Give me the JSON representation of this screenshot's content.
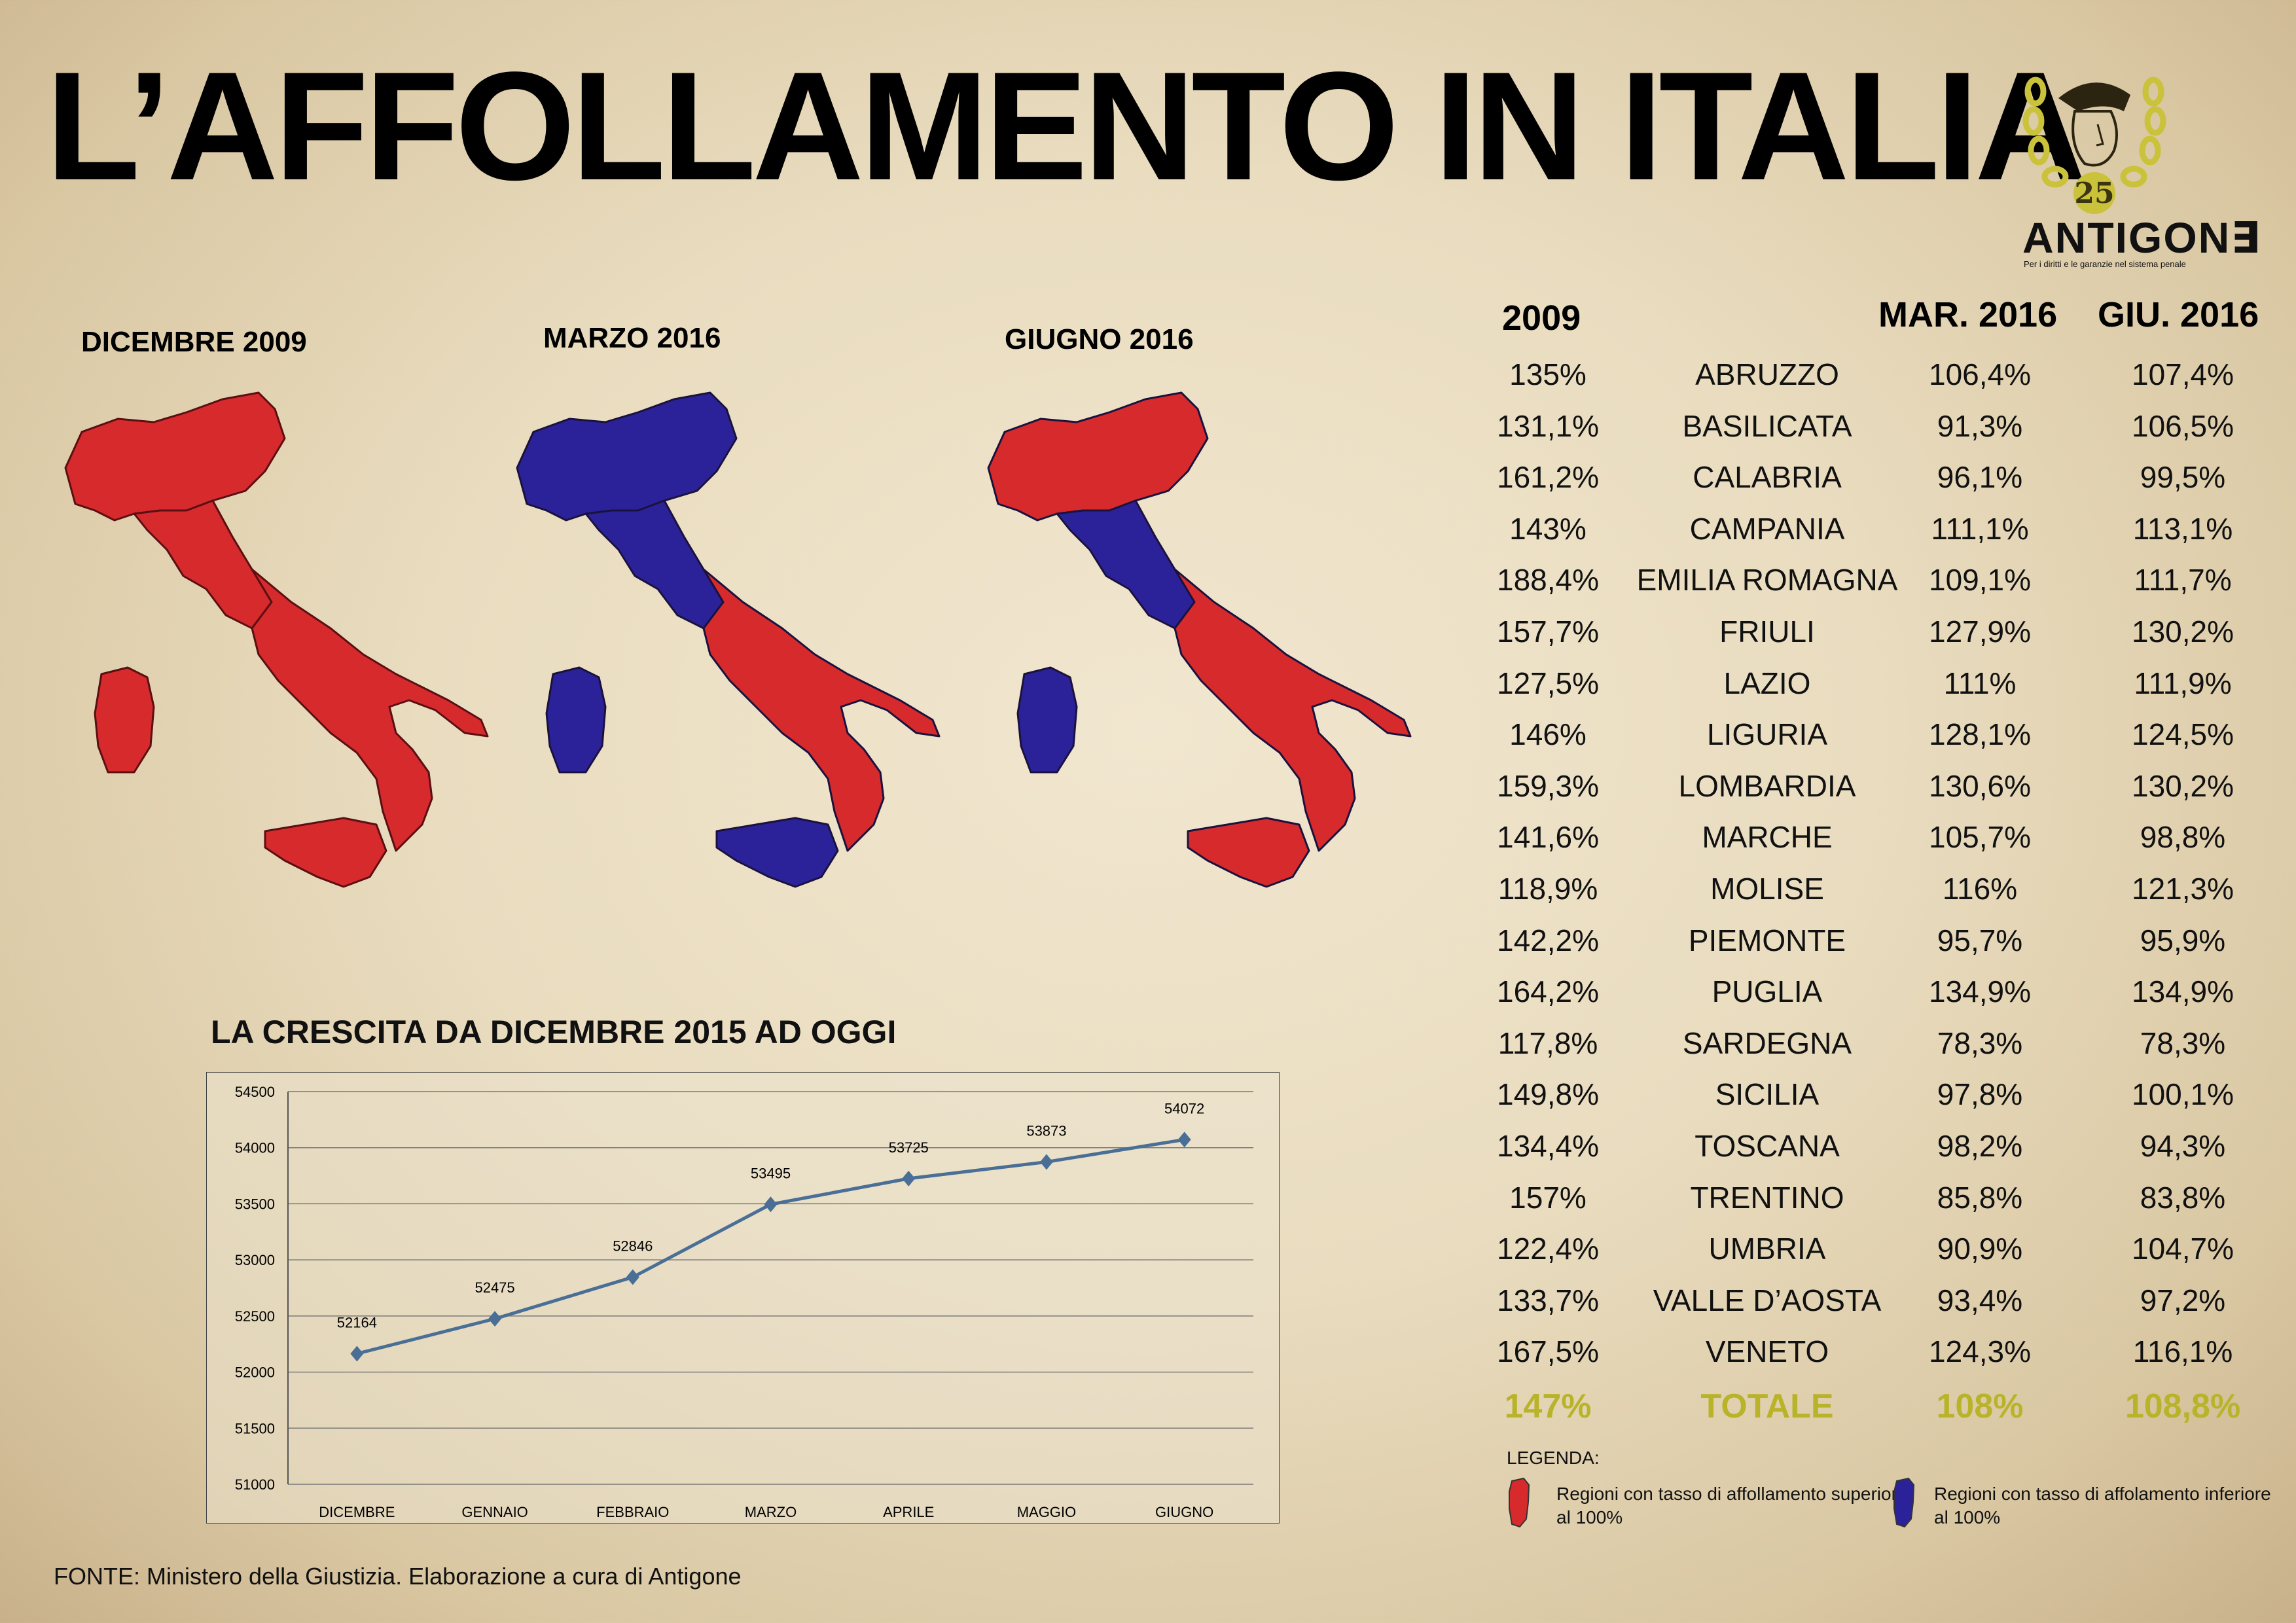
{
  "title": "L’AFFOLLAMENTO IN ITALIA",
  "maps": [
    {
      "label": "DICEMBRE 2009"
    },
    {
      "label": "MARZO 2016"
    },
    {
      "label": "GIUGNO 2016"
    }
  ],
  "colors": {
    "over": "#d62a2d",
    "under": "#2b229a",
    "total": "#b9b32a"
  },
  "table": {
    "headers": {
      "y2009": "2009",
      "mar": "MAR. 2016",
      "giu": "GIU. 2016"
    },
    "rows": [
      {
        "y2009": "135%",
        "region": "ABRUZZO",
        "mar": "106,4%",
        "giu": "107,4%"
      },
      {
        "y2009": "131,1%",
        "region": "BASILICATA",
        "mar": "91,3%",
        "giu": "106,5%"
      },
      {
        "y2009": "161,2%",
        "region": "CALABRIA",
        "mar": "96,1%",
        "giu": "99,5%"
      },
      {
        "y2009": "143%",
        "region": "CAMPANIA",
        "mar": "111,1%",
        "giu": "113,1%"
      },
      {
        "y2009": "188,4%",
        "region": "EMILIA ROMAGNA",
        "mar": "109,1%",
        "giu": "111,7%"
      },
      {
        "y2009": "157,7%",
        "region": "FRIULI",
        "mar": "127,9%",
        "giu": "130,2%"
      },
      {
        "y2009": "127,5%",
        "region": "LAZIO",
        "mar": "111%",
        "giu": "111,9%"
      },
      {
        "y2009": "146%",
        "region": "LIGURIA",
        "mar": "128,1%",
        "giu": "124,5%"
      },
      {
        "y2009": "159,3%",
        "region": "LOMBARDIA",
        "mar": "130,6%",
        "giu": "130,2%"
      },
      {
        "y2009": "141,6%",
        "region": "MARCHE",
        "mar": "105,7%",
        "giu": "98,8%"
      },
      {
        "y2009": "118,9%",
        "region": "MOLISE",
        "mar": "116%",
        "giu": "121,3%"
      },
      {
        "y2009": "142,2%",
        "region": "PIEMONTE",
        "mar": "95,7%",
        "giu": "95,9%"
      },
      {
        "y2009": "164,2%",
        "region": "PUGLIA",
        "mar": "134,9%",
        "giu": "134,9%"
      },
      {
        "y2009": "117,8%",
        "region": "SARDEGNA",
        "mar": "78,3%",
        "giu": "78,3%"
      },
      {
        "y2009": "149,8%",
        "region": "SICILIA",
        "mar": "97,8%",
        "giu": "100,1%"
      },
      {
        "y2009": "134,4%",
        "region": "TOSCANA",
        "mar": "98,2%",
        "giu": "94,3%"
      },
      {
        "y2009": "157%",
        "region": "TRENTINO",
        "mar": "85,8%",
        "giu": "83,8%"
      },
      {
        "y2009": "122,4%",
        "region": "UMBRIA",
        "mar": "90,9%",
        "giu": "104,7%"
      },
      {
        "y2009": "133,7%",
        "region": "VALLE D’AOSTA",
        "mar": "93,4%",
        "giu": "97,2%"
      },
      {
        "y2009": "167,5%",
        "region": "VENETO",
        "mar": "124,3%",
        "giu": "116,1%"
      }
    ],
    "total": {
      "y2009": "147%",
      "region": "TOTALE",
      "mar": "108%",
      "giu": "108,8%"
    }
  },
  "chart_data": {
    "type": "line",
    "title": "LA CRESCITA DA DICEMBRE 2015 AD OGGI",
    "categories": [
      "DICEMBRE",
      "GENNAIO",
      "FEBBRAIO",
      "MARZO",
      "APRILE",
      "MAGGIO",
      "GIUGNO"
    ],
    "values": [
      52164,
      52475,
      52846,
      53495,
      53725,
      53873,
      54072
    ],
    "ylim": [
      51000,
      54500
    ],
    "yticks": [
      51000,
      51500,
      52000,
      52500,
      53000,
      53500,
      54000,
      54500
    ],
    "grid": true,
    "line_color": "#4a6f96"
  },
  "legend": {
    "title": "LEGENDA:",
    "over": "Regioni con tasso di affollamento superiore al 100%",
    "under": "Regioni con tasso di affolamento inferiore al 100%"
  },
  "source": "FONTE: Ministero della Giustizia. Elaborazione a cura di Antigone",
  "logo": {
    "name": "ANTIGON∃",
    "number": "25",
    "tagline": "Per i diritti e le garanzie nel sistema penale"
  }
}
